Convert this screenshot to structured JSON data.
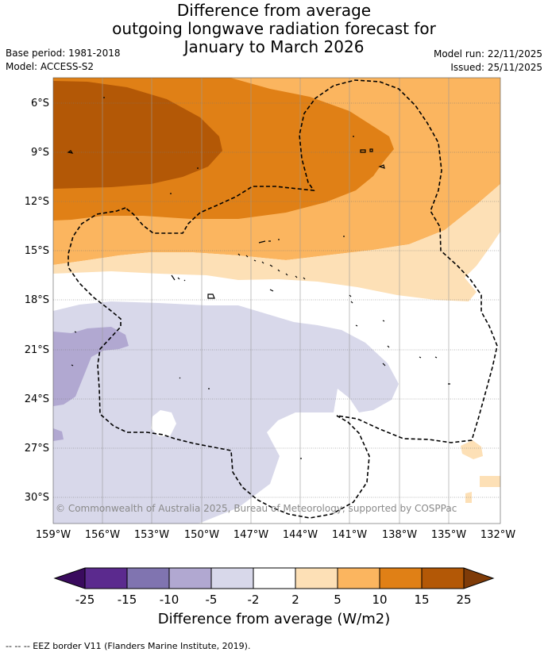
{
  "title": {
    "line1": "Difference from average",
    "line2": "outgoing longwave radiation forecast for",
    "line3": "January to March 2026"
  },
  "meta": {
    "base_period": "Base period: 1981-2018",
    "model": "Model: ACCESS-S2",
    "model_run": "Model run: 22/11/2025",
    "issued": "Issued: 25/11/2025"
  },
  "axes": {
    "lat_labels": [
      "6°S",
      "9°S",
      "12°S",
      "15°S",
      "18°S",
      "21°S",
      "24°S",
      "27°S",
      "30°S"
    ],
    "lon_labels": [
      "159°W",
      "156°W",
      "153°W",
      "150°W",
      "147°W",
      "144°W",
      "141°W",
      "138°W",
      "135°W",
      "132°W"
    ]
  },
  "copyright": "© Commonwealth of Australia 2025, Bureau of Meteorology, supported by COSPPac",
  "colorbar": {
    "title": "Difference from average (W/m2)",
    "tick_labels": [
      "-25",
      "-15",
      "-10",
      "-5",
      "-2",
      "2",
      "5",
      "10",
      "15",
      "25"
    ],
    "colors": {
      "under": "#3a0b5e",
      "c1": "#5b2a8e",
      "c2": "#8074b0",
      "c3": "#b1a8d1",
      "c4": "#d8d8ea",
      "c5": "#ffffff",
      "c6": "#fde0b6",
      "c7": "#fbb55f",
      "c8": "#e08016",
      "c9": "#b35806",
      "over": "#7f3b08"
    }
  },
  "footer": "--  --  -- EEZ border V11 (Flanders Marine Institute, 2019)."
}
